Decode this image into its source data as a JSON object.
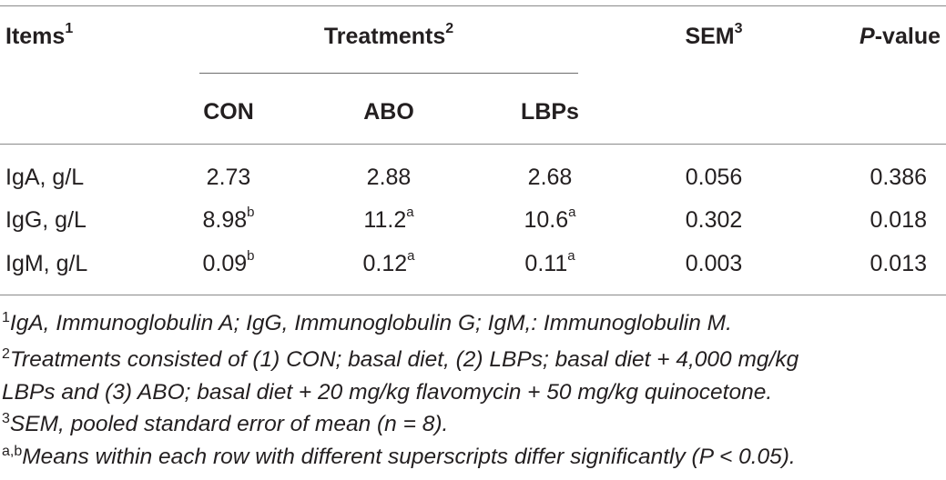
{
  "table": {
    "header": {
      "items": "Items",
      "items_sup": "1",
      "treatments": "Treatments",
      "treatments_sup": "2",
      "sem": "SEM",
      "sem_sup": "3",
      "pvalue_italic": "P",
      "pvalue_rest": "-value",
      "groups": [
        "CON",
        "ABO",
        "LBPs"
      ]
    },
    "rows": [
      {
        "item": "IgA, g/L",
        "con": "2.73",
        "con_sup": "",
        "abo": "2.88",
        "abo_sup": "",
        "lbps": "2.68",
        "lbps_sup": "",
        "sem": "0.056",
        "p": "0.386"
      },
      {
        "item": "IgG, g/L",
        "con": "8.98",
        "con_sup": "b",
        "abo": "11.2",
        "abo_sup": "a",
        "lbps": "10.6",
        "lbps_sup": "a",
        "sem": "0.302",
        "p": "0.018"
      },
      {
        "item": "IgM, g/L",
        "con": "0.09",
        "con_sup": "b",
        "abo": "0.12",
        "abo_sup": "a",
        "lbps": "0.11",
        "lbps_sup": "a",
        "sem": "0.003",
        "p": "0.013"
      }
    ]
  },
  "footnotes": [
    {
      "mark": "1",
      "lines": [
        "IgA, Immunoglobulin A; IgG, Immunoglobulin G; IgM,: Immunoglobulin M."
      ]
    },
    {
      "mark": "2",
      "lines": [
        "Treatments consisted of (1) CON; basal diet, (2) LBPs; basal diet + 4,000 mg/kg",
        "LBPs and (3) ABO; basal diet + 20 mg/kg flavomycin + 50 mg/kg quinocetone."
      ]
    },
    {
      "mark": "3",
      "lines": [
        "SEM, pooled standard error of mean (n = 8)."
      ]
    },
    {
      "mark": "a,b",
      "lines": [
        "Means within each row with different superscripts differ significantly (P < 0.05)."
      ]
    }
  ]
}
